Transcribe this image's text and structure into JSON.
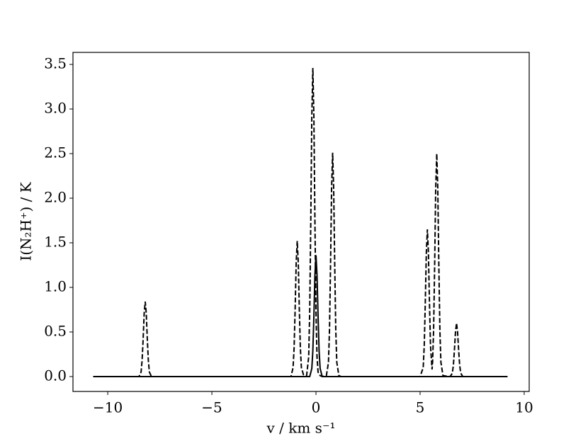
{
  "chart_data": {
    "type": "line",
    "xlabel": "v / km s⁻¹",
    "ylabel": "I(N₂H⁺) / K",
    "xlim": [
      -11.67,
      10.24
    ],
    "ylim": [
      -0.167,
      3.635
    ],
    "xticks": [
      {
        "value": -10,
        "label": "−10"
      },
      {
        "value": -5,
        "label": "−5"
      },
      0,
      5,
      10
    ],
    "yticks": [
      {
        "value": 0,
        "label": "0.0"
      },
      0.5,
      {
        "value": 1,
        "label": "1.0"
      },
      1.5,
      {
        "value": 2,
        "label": "2.0"
      },
      2.5,
      {
        "value": 3,
        "label": "3.0"
      },
      3.5
    ],
    "series": [
      {
        "color": "#000000",
        "linestyle": "dashed",
        "x": [
          -10.7,
          -8.5,
          -8.4,
          -8.35,
          -8.3,
          -8.25,
          -8.2,
          -8.15,
          -8.1,
          -8.05,
          -8.0,
          -7.9,
          -1.2,
          -1.1,
          -1.05,
          -1.0,
          -0.95,
          -0.9,
          -0.85,
          -0.8,
          -0.75,
          -0.7,
          -0.6,
          -0.45,
          -0.35,
          -0.3,
          -0.25,
          -0.2,
          -0.15,
          -0.1,
          -0.05,
          0,
          0.05,
          0.1,
          0.2,
          0.3,
          0.5,
          0.6,
          0.65,
          0.7,
          0.75,
          0.8,
          0.85,
          0.9,
          0.95,
          1.0,
          1.1,
          1.2,
          5.0,
          5.15,
          5.2,
          5.25,
          5.3,
          5.35,
          5.4,
          5.45,
          5.5,
          5.575,
          5.6,
          5.65,
          5.7,
          5.75,
          5.8,
          5.85,
          5.9,
          5.95,
          6.0,
          6.1,
          6.45,
          6.55,
          6.6,
          6.65,
          6.7,
          6.75,
          6.8,
          6.85,
          6.9,
          6.95,
          7.05,
          9.2
        ],
        "values": [
          0,
          0,
          0.05,
          0.18,
          0.42,
          0.71,
          0.84,
          0.71,
          0.42,
          0.18,
          0.05,
          0,
          0,
          0.1,
          0.32,
          0.76,
          1.28,
          1.52,
          1.28,
          0.76,
          0.32,
          0.1,
          0.02,
          0.01,
          0.22,
          0.73,
          1.73,
          2.91,
          3.46,
          2.91,
          1.73,
          0.73,
          0.22,
          0.05,
          0.01,
          0,
          0.01,
          0.16,
          0.53,
          1.26,
          2.11,
          2.51,
          2.11,
          1.26,
          0.53,
          0.16,
          0.01,
          0,
          0,
          0.1,
          0.35,
          0.83,
          1.39,
          1.65,
          1.39,
          0.83,
          0.35,
          0.08,
          0.16,
          0.53,
          1.26,
          2.11,
          2.5,
          2.11,
          1.26,
          0.53,
          0.16,
          0.01,
          0,
          0.04,
          0.13,
          0.3,
          0.5,
          0.6,
          0.5,
          0.3,
          0.13,
          0.04,
          0,
          0
        ]
      },
      {
        "color": "#000000",
        "linestyle": "solid",
        "x": [
          -10.7,
          -0.3,
          -0.2,
          -0.15,
          -0.1,
          -0.05,
          0,
          0.05,
          0.1,
          0.15,
          0.2,
          0.3,
          9.2
        ],
        "values": [
          0,
          0,
          0.09,
          0.29,
          0.68,
          1.14,
          1.36,
          1.14,
          0.68,
          0.29,
          0.09,
          0,
          0
        ]
      }
    ]
  }
}
